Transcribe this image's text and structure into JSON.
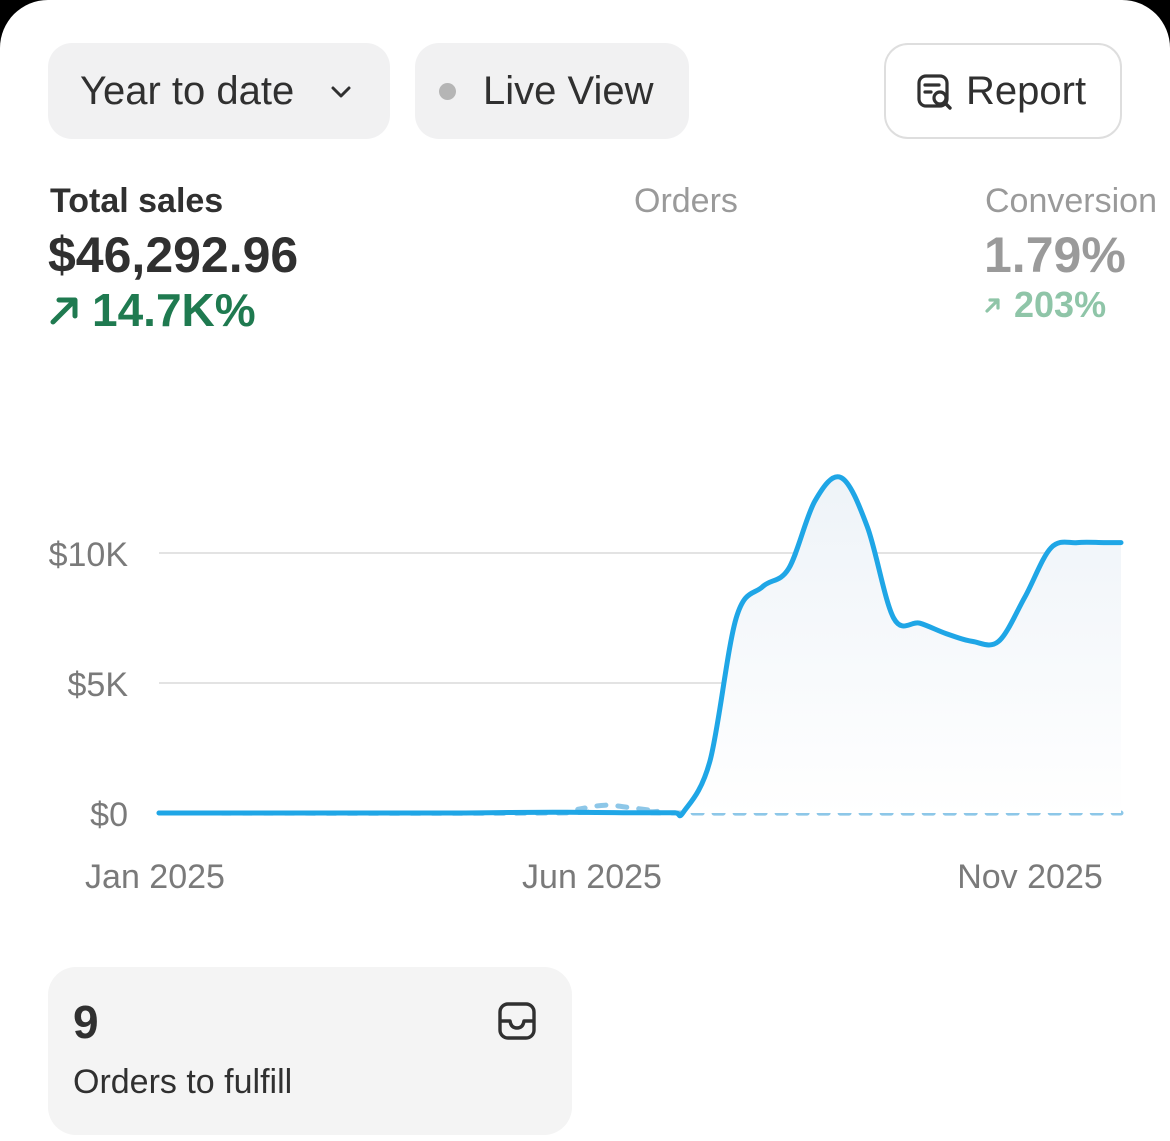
{
  "toolbar": {
    "date_range": "Year to date",
    "live_view": "Live View",
    "report": "Report"
  },
  "metrics": {
    "total_sales": {
      "label": "Total sales",
      "value": "$46,292.96",
      "change": "14.7K%"
    },
    "orders": {
      "label": "Orders"
    },
    "conversion": {
      "label": "Conversion",
      "value": "1.79%",
      "change": "203%"
    }
  },
  "chart_data": {
    "type": "line",
    "ylim": [
      0,
      13000
    ],
    "y_ticks": [
      "$0",
      "$5K",
      "$10K"
    ],
    "y_tick_values": [
      0,
      5000,
      10000
    ],
    "x_ticks": [
      "Jan 2025",
      "Jun 2025",
      "Nov 2025"
    ],
    "series": [
      {
        "style": "solid",
        "color": "#1fa6e6",
        "x": [
          0,
          0.5,
          1,
          1.5,
          2,
          2.5,
          3,
          3.5,
          4,
          4.5,
          5,
          5.3,
          5.6,
          5.9,
          6.0,
          6.3,
          6.6,
          6.9,
          7.2,
          7.5,
          7.8,
          8.1,
          8.4,
          8.7,
          9.0,
          9.3,
          9.6,
          9.9,
          10.2,
          10.5,
          10.8,
          11.0
        ],
        "y": [
          0,
          0,
          0,
          0,
          0,
          0,
          0,
          0,
          20,
          30,
          20,
          10,
          10,
          10,
          50,
          2000,
          7500,
          8700,
          9400,
          12000,
          12900,
          11000,
          7500,
          7300,
          6900,
          6600,
          6600,
          8300,
          10200,
          10400,
          10400,
          10400
        ]
      },
      {
        "style": "dashed",
        "color": "#8dc7e8",
        "x": [
          0,
          4.5,
          4.8,
          5.1,
          5.4,
          5.7,
          6.0,
          11.0
        ],
        "y": [
          0,
          0,
          150,
          300,
          200,
          80,
          0,
          0
        ]
      }
    ]
  },
  "fulfill_card": {
    "count": "9",
    "label": "Orders to fulfill"
  },
  "colors": {
    "positive": "#1f7a50",
    "positive_muted": "#8fc5a8",
    "line": "#1fa6e6",
    "pill_bg": "#f1f1f2"
  },
  "icons": [
    "chevron-down-icon",
    "live-dot-icon",
    "report-search-icon",
    "arrow-up-right-icon",
    "inbox-tray-icon"
  ]
}
